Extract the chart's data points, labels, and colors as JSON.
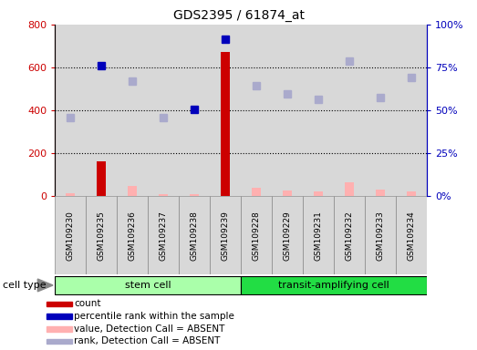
{
  "title": "GDS2395 / 61874_at",
  "samples": [
    "GSM109230",
    "GSM109235",
    "GSM109236",
    "GSM109237",
    "GSM109238",
    "GSM109239",
    "GSM109228",
    "GSM109229",
    "GSM109231",
    "GSM109232",
    "GSM109233",
    "GSM109234"
  ],
  "count_values": [
    null,
    160,
    null,
    null,
    null,
    670,
    null,
    null,
    null,
    null,
    null,
    null
  ],
  "count_absent_values": [
    12,
    null,
    45,
    10,
    8,
    null,
    40,
    25,
    20,
    65,
    28,
    22
  ],
  "rank_values": [
    null,
    610,
    null,
    null,
    405,
    730,
    null,
    null,
    null,
    null,
    null,
    null
  ],
  "rank_absent_values": [
    365,
    null,
    535,
    365,
    null,
    null,
    515,
    475,
    450,
    630,
    460,
    555
  ],
  "ylim_left": [
    0,
    800
  ],
  "yticks_left": [
    0,
    200,
    400,
    600,
    800
  ],
  "ytick_labels_right": [
    "0%",
    "25%",
    "50%",
    "75%",
    "100%"
  ],
  "color_count": "#cc0000",
  "color_count_absent": "#ffb0b0",
  "color_rank": "#0000bb",
  "color_rank_absent": "#aaaacc",
  "stem_cell_color": "#aaffaa",
  "transit_cell_color": "#22dd44",
  "col_bg": "#d8d8d8",
  "grid_color": "black",
  "n_stem": 6,
  "n_transit": 6
}
